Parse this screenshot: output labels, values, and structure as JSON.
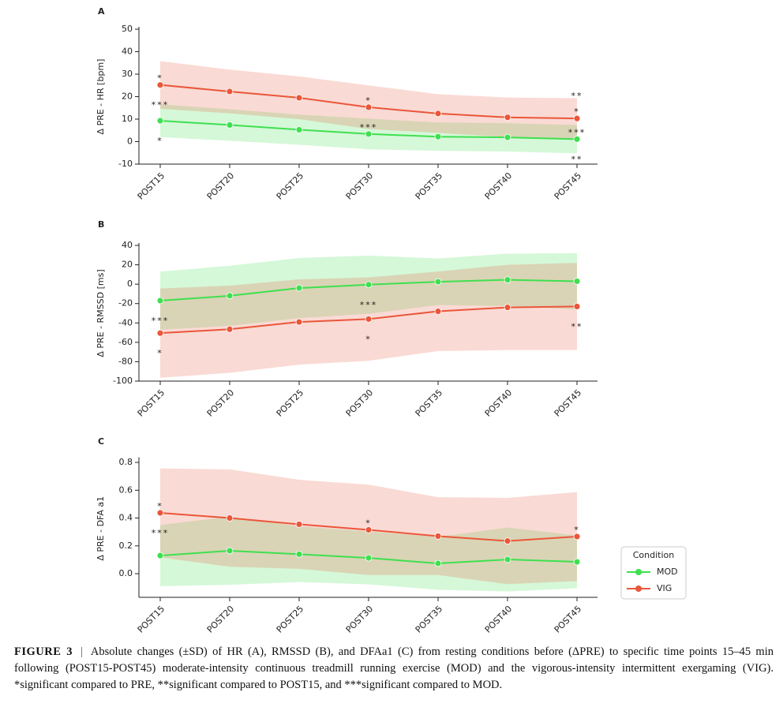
{
  "chart_data": [
    {
      "type": "line",
      "panel_label": "A",
      "ylabel": "Δ PRE - HR [bpm]",
      "categories": [
        "POST15",
        "POST20",
        "POST25",
        "POST30",
        "POST35",
        "POST40",
        "POST45"
      ],
      "ylim": [
        -10,
        50
      ],
      "yticks": [
        -10,
        0,
        10,
        20,
        30,
        40,
        50
      ],
      "series": [
        {
          "name": "MOD",
          "color": "#3ee04f",
          "values": [
            9.3,
            7.4,
            5.3,
            3.4,
            2.2,
            1.9,
            1.1
          ],
          "sd": [
            7.3,
            7,
            6.7,
            6.8,
            6.3,
            6.3,
            6.3
          ]
        },
        {
          "name": "VIG",
          "color": "#ea5639",
          "values": [
            25.2,
            22.3,
            19.5,
            15.3,
            12.5,
            10.8,
            10.3
          ],
          "sd": [
            10.6,
            9.7,
            9.5,
            9.7,
            8.6,
            8.8,
            9
          ]
        }
      ],
      "annotations": [
        {
          "category": "POST15",
          "text": "*",
          "series": "VIG",
          "side": "above"
        },
        {
          "category": "POST15",
          "text": "***",
          "series": "VIG",
          "side": "below"
        },
        {
          "category": "POST15",
          "text": "*",
          "series": "MOD",
          "side": "below"
        },
        {
          "category": "POST30",
          "text": "*",
          "series": "VIG",
          "side": "above"
        },
        {
          "category": "POST30",
          "text": "***",
          "series": "MOD",
          "side": "above"
        },
        {
          "category": "POST45",
          "text": "*",
          "series": "VIG",
          "side": "above"
        },
        {
          "category": "POST45",
          "text": "**",
          "series": "VIG",
          "side": "above"
        },
        {
          "category": "POST45",
          "text": "***",
          "series": "MOD",
          "side": "above"
        },
        {
          "category": "POST45",
          "text": "**",
          "series": "MOD",
          "side": "below"
        }
      ]
    },
    {
      "type": "line",
      "panel_label": "B",
      "ylabel": "Δ PRE - RMSSD [ms]",
      "categories": [
        "POST15",
        "POST20",
        "POST25",
        "POST30",
        "POST35",
        "POST40",
        "POST45"
      ],
      "ylim": [
        -100,
        40
      ],
      "yticks": [
        -100,
        -80,
        -60,
        -40,
        -20,
        0,
        20,
        40
      ],
      "series": [
        {
          "name": "MOD",
          "color": "#3ee04f",
          "values": [
            -17,
            -12,
            -4,
            -0.5,
            2.5,
            4.5,
            3
          ],
          "sd": [
            30,
            31,
            31,
            30,
            24,
            27,
            29
          ]
        },
        {
          "name": "VIG",
          "color": "#ea5639",
          "values": [
            -50.5,
            -46.5,
            -39,
            -36,
            -28,
            -24,
            -23
          ],
          "sd": [
            46,
            45,
            44,
            43,
            41,
            44,
            45
          ]
        }
      ],
      "annotations": [
        {
          "category": "POST15",
          "text": "***",
          "series": "MOD",
          "side": "below"
        },
        {
          "category": "POST15",
          "text": "*",
          "series": "VIG",
          "side": "below"
        },
        {
          "category": "POST30",
          "text": "***",
          "series": "MOD",
          "side": "below"
        },
        {
          "category": "POST30",
          "text": "*",
          "series": "VIG",
          "side": "below"
        },
        {
          "category": "POST45",
          "text": "**",
          "series": "VIG",
          "side": "below"
        }
      ]
    },
    {
      "type": "line",
      "panel_label": "C",
      "ylabel": "Δ PRE - DFA a1",
      "categories": [
        "POST15",
        "POST20",
        "POST25",
        "POST30",
        "POST35",
        "POST40",
        "POST45"
      ],
      "ylim": [
        -0.17,
        0.82
      ],
      "yticks": [
        {
          "value": 0,
          "label": "0.0"
        },
        0.2,
        0.4,
        0.6,
        0.8
      ],
      "legend": "right",
      "legend_title": "Condition",
      "series": [
        {
          "name": "MOD",
          "color": "#3ee04f",
          "values": [
            0.13,
            0.165,
            0.14,
            0.113,
            0.074,
            0.102,
            0.085
          ],
          "sd": [
            0.22,
            0.245,
            0.2,
            0.19,
            0.19,
            0.23,
            0.19
          ]
        },
        {
          "name": "VIG",
          "color": "#ea5639",
          "values": [
            0.437,
            0.4,
            0.355,
            0.315,
            0.27,
            0.235,
            0.267
          ],
          "sd": [
            0.32,
            0.35,
            0.32,
            0.325,
            0.28,
            0.31,
            0.32
          ]
        }
      ],
      "annotations": [
        {
          "category": "POST15",
          "text": "*",
          "series": "VIG",
          "side": "above"
        },
        {
          "category": "POST15",
          "text": "***",
          "series": "VIG",
          "side": "below"
        },
        {
          "category": "POST30",
          "text": "*",
          "series": "VIG",
          "side": "above"
        },
        {
          "category": "POST45",
          "text": "*",
          "series": "VIG",
          "side": "above"
        }
      ]
    }
  ],
  "caption": {
    "label": "FIGURE 3",
    "separator": "|",
    "text": "Absolute changes (±SD) of HR (A), RMSSD (B), and DFAa1 (C) from resting conditions before (ΔPRE) to specific time points 15–45 min following (POST15-POST45) moderate-intensity continuous treadmill running exercise (MOD) and the vigorous-intensity intermittent exergaming (VIG). *significant compared to PRE, **significant compared to POST15, and ***significant compared to MOD."
  }
}
